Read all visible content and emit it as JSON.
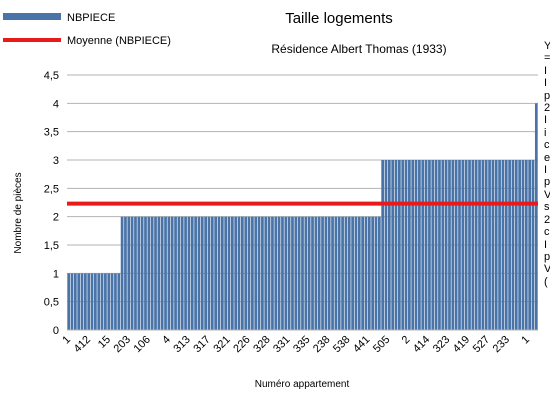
{
  "chart_data": {
    "type": "bar",
    "title": "Taille logements",
    "subtitle": "Résidence Albert Thomas (1933)",
    "xlabel": "Numéro appartement",
    "ylabel": "Nombre de pièces",
    "ylim": [
      0,
      4.5
    ],
    "yticks": [
      "0",
      "0,5",
      "1",
      "1,5",
      "2",
      "2,5",
      "3",
      "3,5",
      "4",
      "4,5"
    ],
    "xtick_labels": [
      "1",
      "412",
      "15",
      "203",
      "106",
      "4",
      "313",
      "317",
      "321",
      "226",
      "328",
      "331",
      "335",
      "238",
      "538",
      "441",
      "505",
      "2",
      "414",
      "323",
      "419",
      "527",
      "233",
      "1"
    ],
    "grid": "horizontal",
    "legend_position": "top-left",
    "series": [
      {
        "name": "NBPIECE",
        "kind": "bar",
        "color": "#4a74a8",
        "groups": [
          {
            "value": 1,
            "count": 16
          },
          {
            "value": 2,
            "count": 78
          },
          {
            "value": 3,
            "count": 46
          },
          {
            "value": 4,
            "count": 1
          }
        ]
      },
      {
        "name": "Moyenne (NBPIECE)",
        "kind": "line",
        "color": "#e81a1a",
        "value": 2.23
      }
    ]
  },
  "side_text": {
    "lines": [
      "Y",
      "=",
      "I",
      "I",
      "p",
      "2",
      "I",
      "i",
      "c",
      "e",
      "I",
      "p",
      "V",
      "s",
      "2",
      "c",
      "I",
      "p",
      "V",
      "("
    ]
  }
}
